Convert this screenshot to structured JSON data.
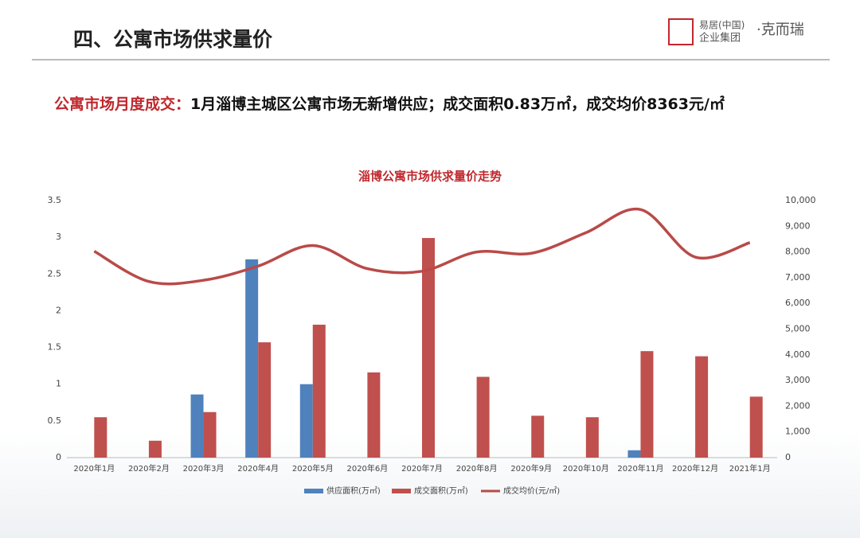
{
  "header": {
    "title": "四、公寓市场供求量价",
    "logo": {
      "line1": "易居(中国)",
      "line2": "企业集团",
      "brand": "·克而瑞"
    }
  },
  "headline": {
    "label": "公寓市场月度成交：",
    "text": "1月淄博主城区公寓市场无新增供应；成交面积0.83万㎡，成交均价8363元/㎡"
  },
  "chart_data": {
    "type": "bar-line",
    "title": "淄博公寓市场供求量价走势",
    "categories": [
      "2020年1月",
      "2020年2月",
      "2020年3月",
      "2020年4月",
      "2020年5月",
      "2020年6月",
      "2020年7月",
      "2020年8月",
      "2020年9月",
      "2020年10月",
      "2020年11月",
      "2020年12月",
      "2021年1月"
    ],
    "series": [
      {
        "name": "供应面积(万㎡)",
        "color": "#4f81bd",
        "type": "bar",
        "values": [
          0,
          0,
          0.86,
          2.7,
          1.0,
          0,
          0,
          0,
          0,
          0,
          0.1,
          0,
          0
        ]
      },
      {
        "name": "成交面积(万㎡)",
        "color": "#c0504d",
        "type": "bar",
        "values": [
          0.55,
          0.23,
          0.62,
          1.57,
          1.81,
          1.16,
          2.99,
          1.1,
          0.57,
          0.55,
          1.45,
          1.38,
          0.83
        ]
      },
      {
        "name": "成交均价(元/㎡)",
        "color": "#b94a48",
        "type": "line",
        "axis": "y2",
        "values": [
          8030,
          6850,
          6900,
          7450,
          8250,
          7350,
          7250,
          8000,
          7950,
          8750,
          9650,
          7800,
          8363
        ]
      }
    ],
    "ylim": [
      0,
      3.5
    ],
    "yticks": [
      0,
      0.5,
      1,
      1.5,
      2,
      2.5,
      3,
      3.5
    ],
    "y2lim": [
      0,
      10000
    ],
    "y2ticks": [
      0,
      {
        "value": 1000,
        "label": "1,000"
      },
      {
        "value": 2000,
        "label": "2,000"
      },
      {
        "value": 3000,
        "label": "3,000"
      },
      {
        "value": 4000,
        "label": "4,000"
      },
      {
        "value": 5000,
        "label": "5,000"
      },
      {
        "value": 6000,
        "label": "6,000"
      },
      {
        "value": 7000,
        "label": "7,000"
      },
      {
        "value": 8000,
        "label": "8,000"
      },
      {
        "value": 9000,
        "label": "9,000"
      },
      {
        "value": 10000,
        "label": "10,000"
      }
    ],
    "grid": false,
    "legend": "bottom"
  }
}
